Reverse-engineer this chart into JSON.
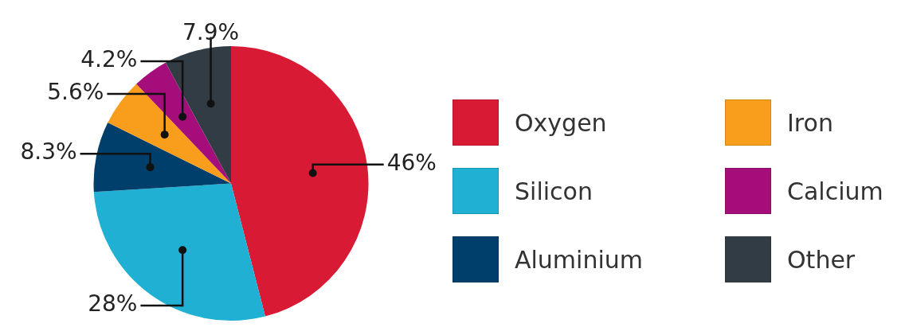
{
  "chart_data": {
    "type": "pie",
    "categories": [
      "Oxygen",
      "Silicon",
      "Aluminium",
      "Iron",
      "Calcium",
      "Other"
    ],
    "values": [
      46,
      28,
      8.3,
      5.6,
      4.2,
      7.9
    ],
    "colors": [
      "#d91a35",
      "#1fb0d3",
      "#003f6b",
      "#f99d1c",
      "#a50e7a",
      "#323c44"
    ],
    "value_labels": [
      "46%",
      "28%",
      "8.3%",
      "5.6%",
      "4.2%",
      "7.9%"
    ],
    "legend": "right"
  }
}
